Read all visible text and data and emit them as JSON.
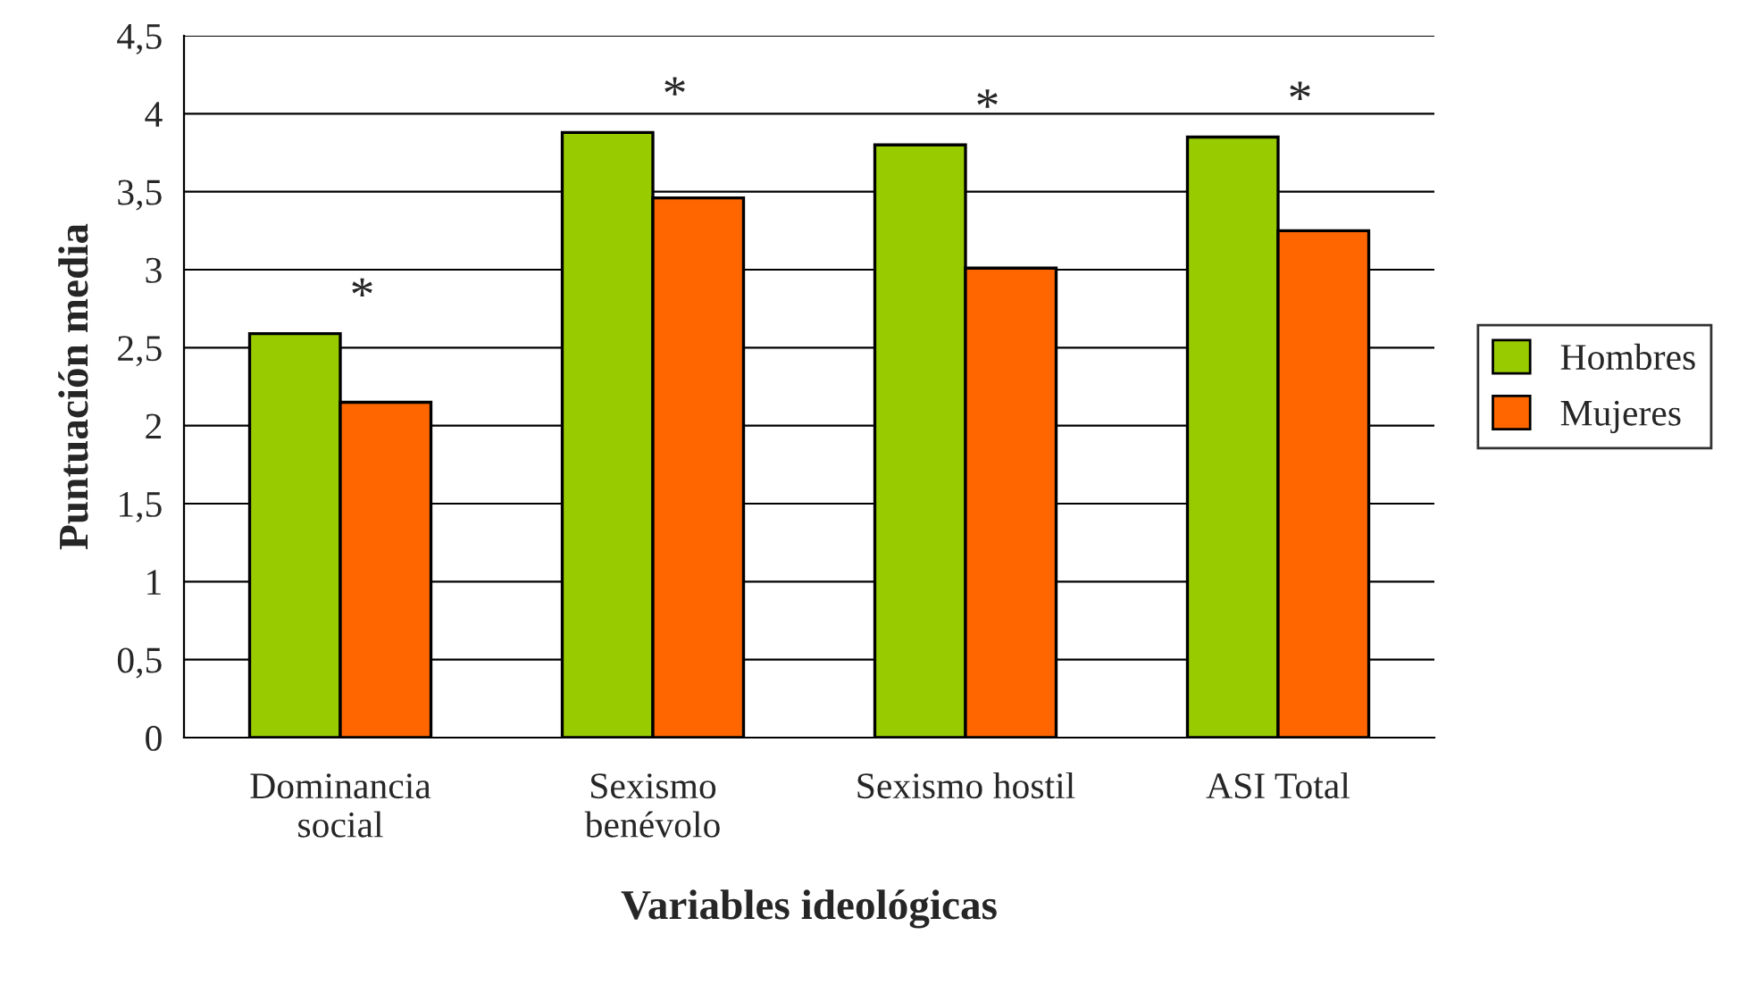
{
  "chart_data": {
    "type": "bar",
    "xlabel": "Variables ideológicas",
    "ylabel": "Puntuación media",
    "categories": [
      "Dominancia\nsocial",
      "Sexismo\nbenévolo",
      "Sexismo hostil",
      "ASI Total"
    ],
    "series": [
      {
        "name": "Hombres",
        "color": "#99cc00",
        "values": [
          2.59,
          3.88,
          3.8,
          3.85
        ]
      },
      {
        "name": "Mujeres",
        "color": "#ff6600",
        "values": [
          2.15,
          3.46,
          3.01,
          3.25
        ]
      }
    ],
    "ylim": [
      0,
      4.5
    ],
    "yticks": [
      0,
      {
        "value": 0.5,
        "label": "0,5"
      },
      1,
      {
        "value": 1.5,
        "label": "1,5"
      },
      2,
      {
        "value": 2.5,
        "label": "2,5"
      },
      3,
      {
        "value": 3.5,
        "label": "3,5"
      },
      4,
      {
        "value": 4.5,
        "label": "4,5"
      }
    ],
    "grid": "y",
    "legend": "right",
    "annotations": [
      "*",
      "*",
      "*",
      "*"
    ]
  }
}
